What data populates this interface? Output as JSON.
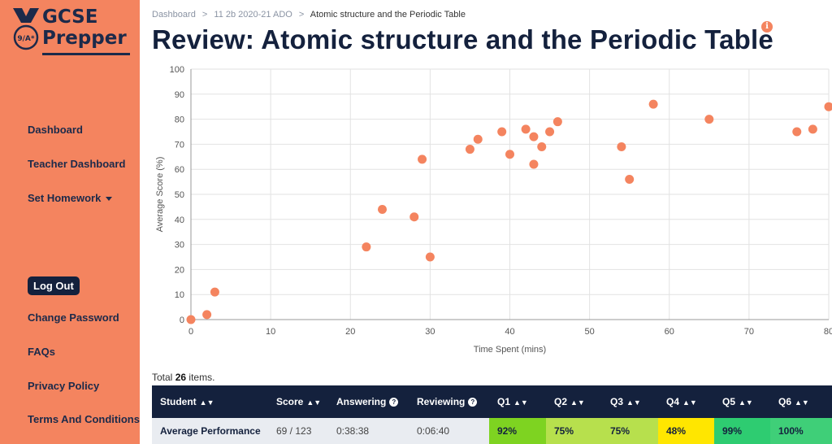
{
  "logo": {
    "line1": "GCSE",
    "line2": "Prepper",
    "badge": "9/A*"
  },
  "sidebar": {
    "dashboard": "Dashboard",
    "teacher_dashboard": "Teacher Dashboard",
    "set_homework": "Set Homework",
    "logout": "Log Out",
    "change_password": "Change Password",
    "faqs": "FAQs",
    "privacy": "Privacy Policy",
    "terms": "Terms And Conditions"
  },
  "breadcrumb": {
    "home": "Dashboard",
    "sep": ">",
    "class": "11 2b 2020-21 ADO",
    "current": "Atomic structure and the Periodic Table"
  },
  "title": "Review: Atomic structure and the Periodic Table",
  "info_icon": "i",
  "chart_data": {
    "type": "scatter",
    "xlabel": "Time Spent (mins)",
    "ylabel": "Average Score (%)",
    "xlim": [
      0,
      80
    ],
    "ylim": [
      0,
      100
    ],
    "xticks": [
      "0",
      "10",
      "20",
      "30",
      "40",
      "50",
      "60",
      "70",
      "80"
    ],
    "yticks": [
      "0",
      "10",
      "20",
      "30",
      "40",
      "50",
      "60",
      "70",
      "80",
      "90",
      "100"
    ],
    "grid": true,
    "point_color": "#f4845f",
    "points": [
      [
        0,
        0
      ],
      [
        2,
        2
      ],
      [
        3,
        11
      ],
      [
        22,
        29
      ],
      [
        24,
        44
      ],
      [
        28,
        41
      ],
      [
        29,
        64
      ],
      [
        30,
        25
      ],
      [
        35,
        68
      ],
      [
        36,
        72
      ],
      [
        39,
        75
      ],
      [
        40,
        66
      ],
      [
        42,
        76
      ],
      [
        43,
        73
      ],
      [
        43,
        62
      ],
      [
        44,
        69
      ],
      [
        45,
        75
      ],
      [
        46,
        79
      ],
      [
        54,
        69
      ],
      [
        55,
        56
      ],
      [
        58,
        86
      ],
      [
        65,
        80
      ],
      [
        76,
        75
      ],
      [
        78,
        76
      ],
      [
        80,
        85
      ]
    ]
  },
  "total": {
    "prefix": "Total",
    "count": "26",
    "suffix": "items."
  },
  "table": {
    "headers": {
      "student": "Student",
      "score": "Score",
      "answering": "Answering",
      "reviewing": "Reviewing",
      "q1": "Q1",
      "q2": "Q2",
      "q3": "Q3",
      "q4": "Q4",
      "q5": "Q5",
      "q6": "Q6"
    },
    "row": {
      "student": "Average Performance",
      "score": "69 / 123",
      "answering": "0:38:38",
      "reviewing": "0:06:40",
      "q1": "92%",
      "q2": "75%",
      "q3": "75%",
      "q4": "48%",
      "q5": "99%",
      "q6": "100%"
    },
    "colors": {
      "q1": "#7ed321",
      "q2": "#b7e04d",
      "q3": "#b7e04d",
      "q4": "#ffe600",
      "q5": "#2ecc71",
      "q6": "#3fcf78"
    }
  },
  "colors": {
    "sidebar": "#f4845f",
    "navy": "#14213d",
    "accent": "#f4845f"
  }
}
